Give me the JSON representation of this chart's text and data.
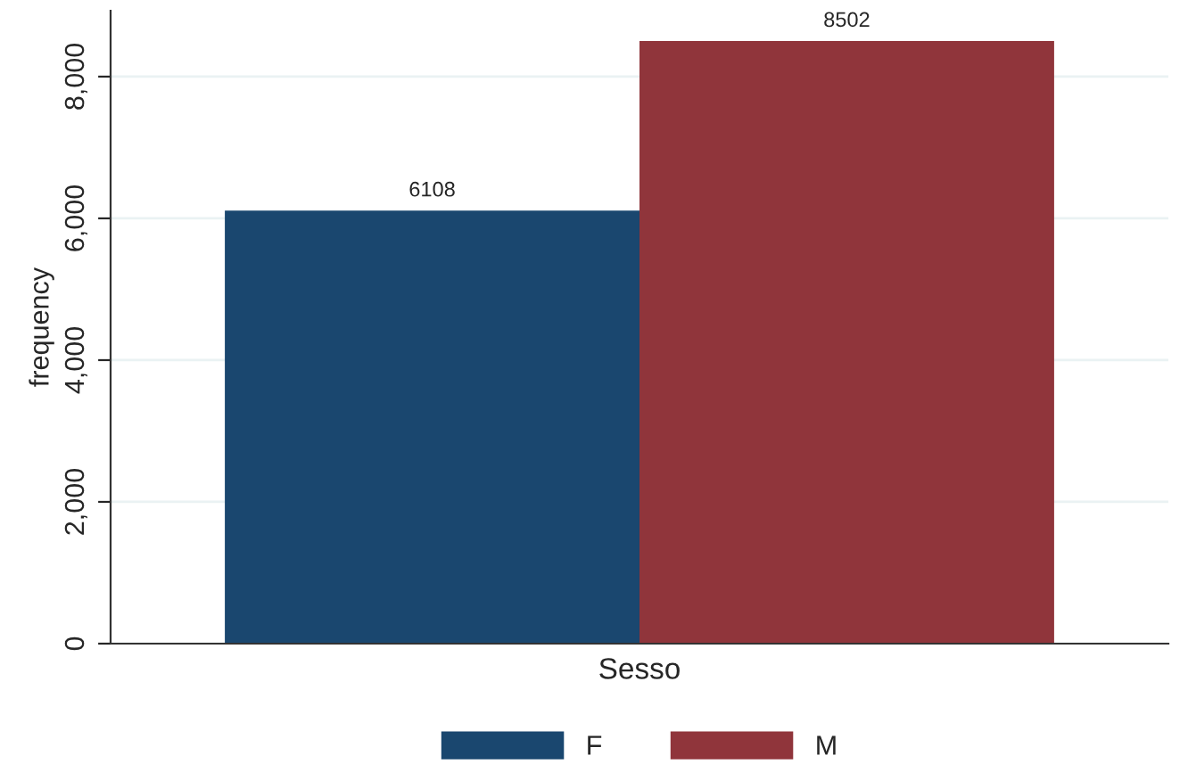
{
  "chart_data": {
    "type": "bar",
    "xlabel": "Sesso",
    "ylabel": "frequency",
    "categories": [
      null
    ],
    "series": [
      {
        "name": "F",
        "color": "#1a476f",
        "values": [
          6108
        ]
      },
      {
        "name": "M",
        "color": "#90353b",
        "values": [
          8502
        ]
      }
    ],
    "ylim": [
      0,
      8930
    ],
    "yticks": [
      {
        "value": 0,
        "label": "0"
      },
      {
        "value": 2000,
        "label": "2,000"
      },
      {
        "value": 4000,
        "label": "4,000"
      },
      {
        "value": 6000,
        "label": "6,000"
      },
      {
        "value": 8000,
        "label": "8,000"
      }
    ],
    "data_labels": true,
    "grid": "y",
    "legend": "bottom"
  }
}
